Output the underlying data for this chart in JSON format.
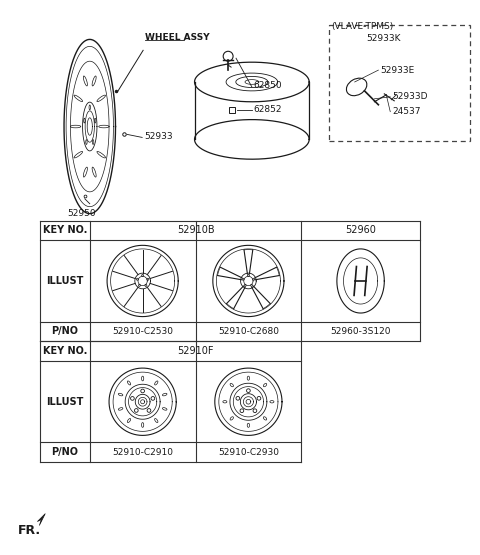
{
  "bg_color": "#ffffff",
  "line_color": "#1a1a1a",
  "text_color": "#1a1a1a",
  "parts": {
    "wheel_assy_label": "WHEEL ASSY",
    "part_62850": "62850",
    "part_62852": "62852",
    "part_52933": "52933",
    "part_52950": "52950",
    "vlave_label": "(VLAVE-TPMS)",
    "vlave_part": "52933K",
    "vlave_52933E": "52933E",
    "vlave_52933D": "52933D",
    "vlave_24537": "24537"
  },
  "table": {
    "key_no": "KEY NO.",
    "key_52910B": "52910B",
    "key_52960": "52960",
    "illust": "ILLUST",
    "pno": "P/NO",
    "pno_C2530": "52910-C2530",
    "pno_C2680": "52910-C2680",
    "pno_3S120": "52960-3S120",
    "key_52910F": "52910F",
    "pno_C2910": "52910-C2910",
    "pno_C2930": "52910-C2930"
  },
  "fr_label": "FR."
}
